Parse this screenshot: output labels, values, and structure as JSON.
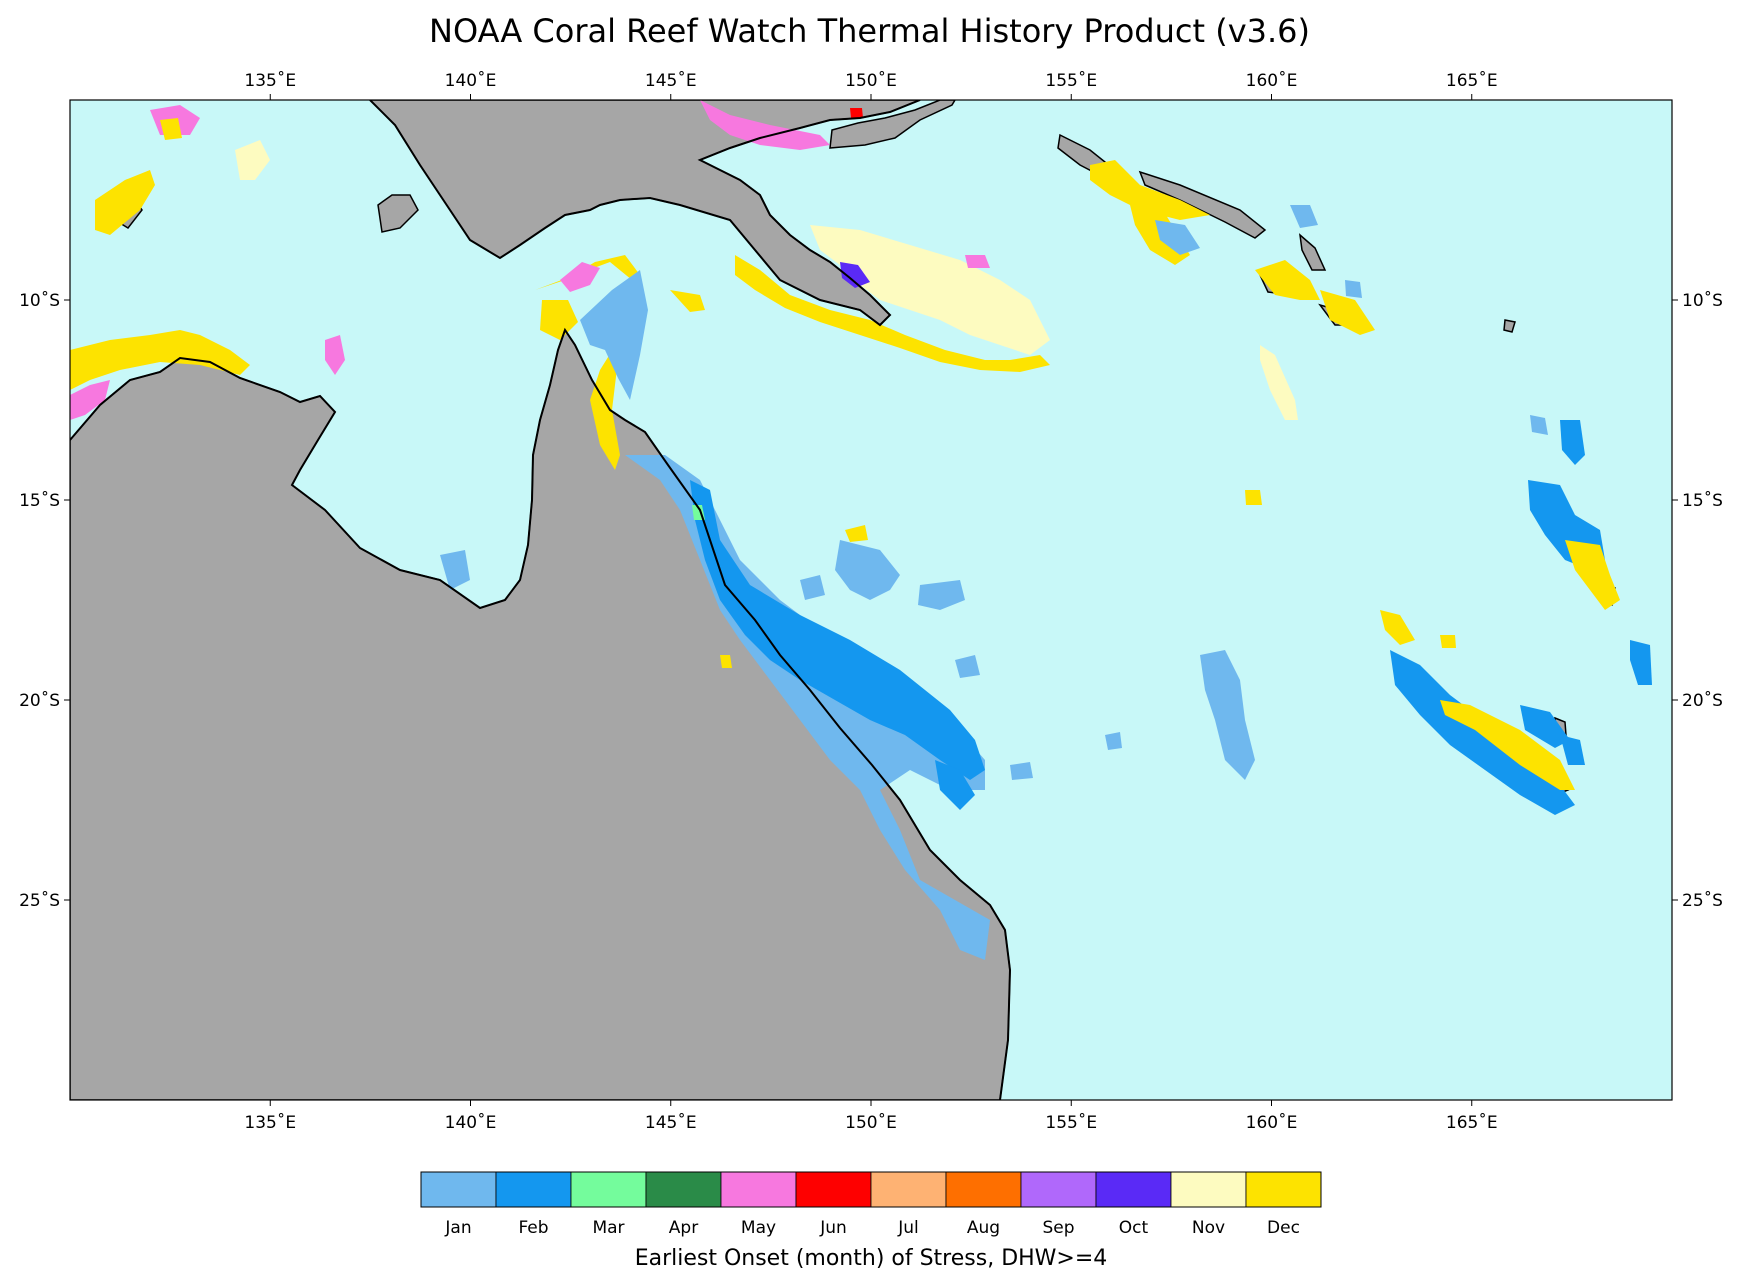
{
  "title": "NOAA Coral Reef Watch Thermal History Product (v3.6)",
  "map": {
    "extent": {
      "lon_min": 130.0,
      "lon_max": 170.0,
      "lat_min": -30.0,
      "lat_max": -5.0
    },
    "lon_ticks": [
      {
        "value": 135,
        "label": "135˚E"
      },
      {
        "value": 140,
        "label": "140˚E"
      },
      {
        "value": 145,
        "label": "145˚E"
      },
      {
        "value": 150,
        "label": "150˚E"
      },
      {
        "value": 155,
        "label": "155˚E"
      },
      {
        "value": 160,
        "label": "160˚E"
      },
      {
        "value": 165,
        "label": "165˚E"
      }
    ],
    "lat_ticks": [
      {
        "value": -10,
        "label": "10˚S"
      },
      {
        "value": -15,
        "label": "15˚S"
      },
      {
        "value": -20,
        "label": "20˚S"
      },
      {
        "value": -25,
        "label": "25˚S"
      }
    ],
    "colors": {
      "ocean": "#c8f8f8",
      "land": "#a6a6a6",
      "coast": "#000000"
    }
  },
  "colorbar": {
    "title": "Earliest Onset (month) of Stress, DHW>=4",
    "entries": [
      {
        "label": "Jan",
        "color": "#6fb8ee"
      },
      {
        "label": "Feb",
        "color": "#1497ef"
      },
      {
        "label": "Mar",
        "color": "#74fc9c"
      },
      {
        "label": "Apr",
        "color": "#2a8b48"
      },
      {
        "label": "May",
        "color": "#f778df"
      },
      {
        "label": "Jun",
        "color": "#fe0000"
      },
      {
        "label": "Jul",
        "color": "#feb273"
      },
      {
        "label": "Aug",
        "color": "#fe6f00"
      },
      {
        "label": "Sep",
        "color": "#b068fb"
      },
      {
        "label": "Oct",
        "color": "#5a2af6"
      },
      {
        "label": "Nov",
        "color": "#fdfbc0"
      },
      {
        "label": "Dec",
        "color": "#fde300"
      }
    ]
  }
}
